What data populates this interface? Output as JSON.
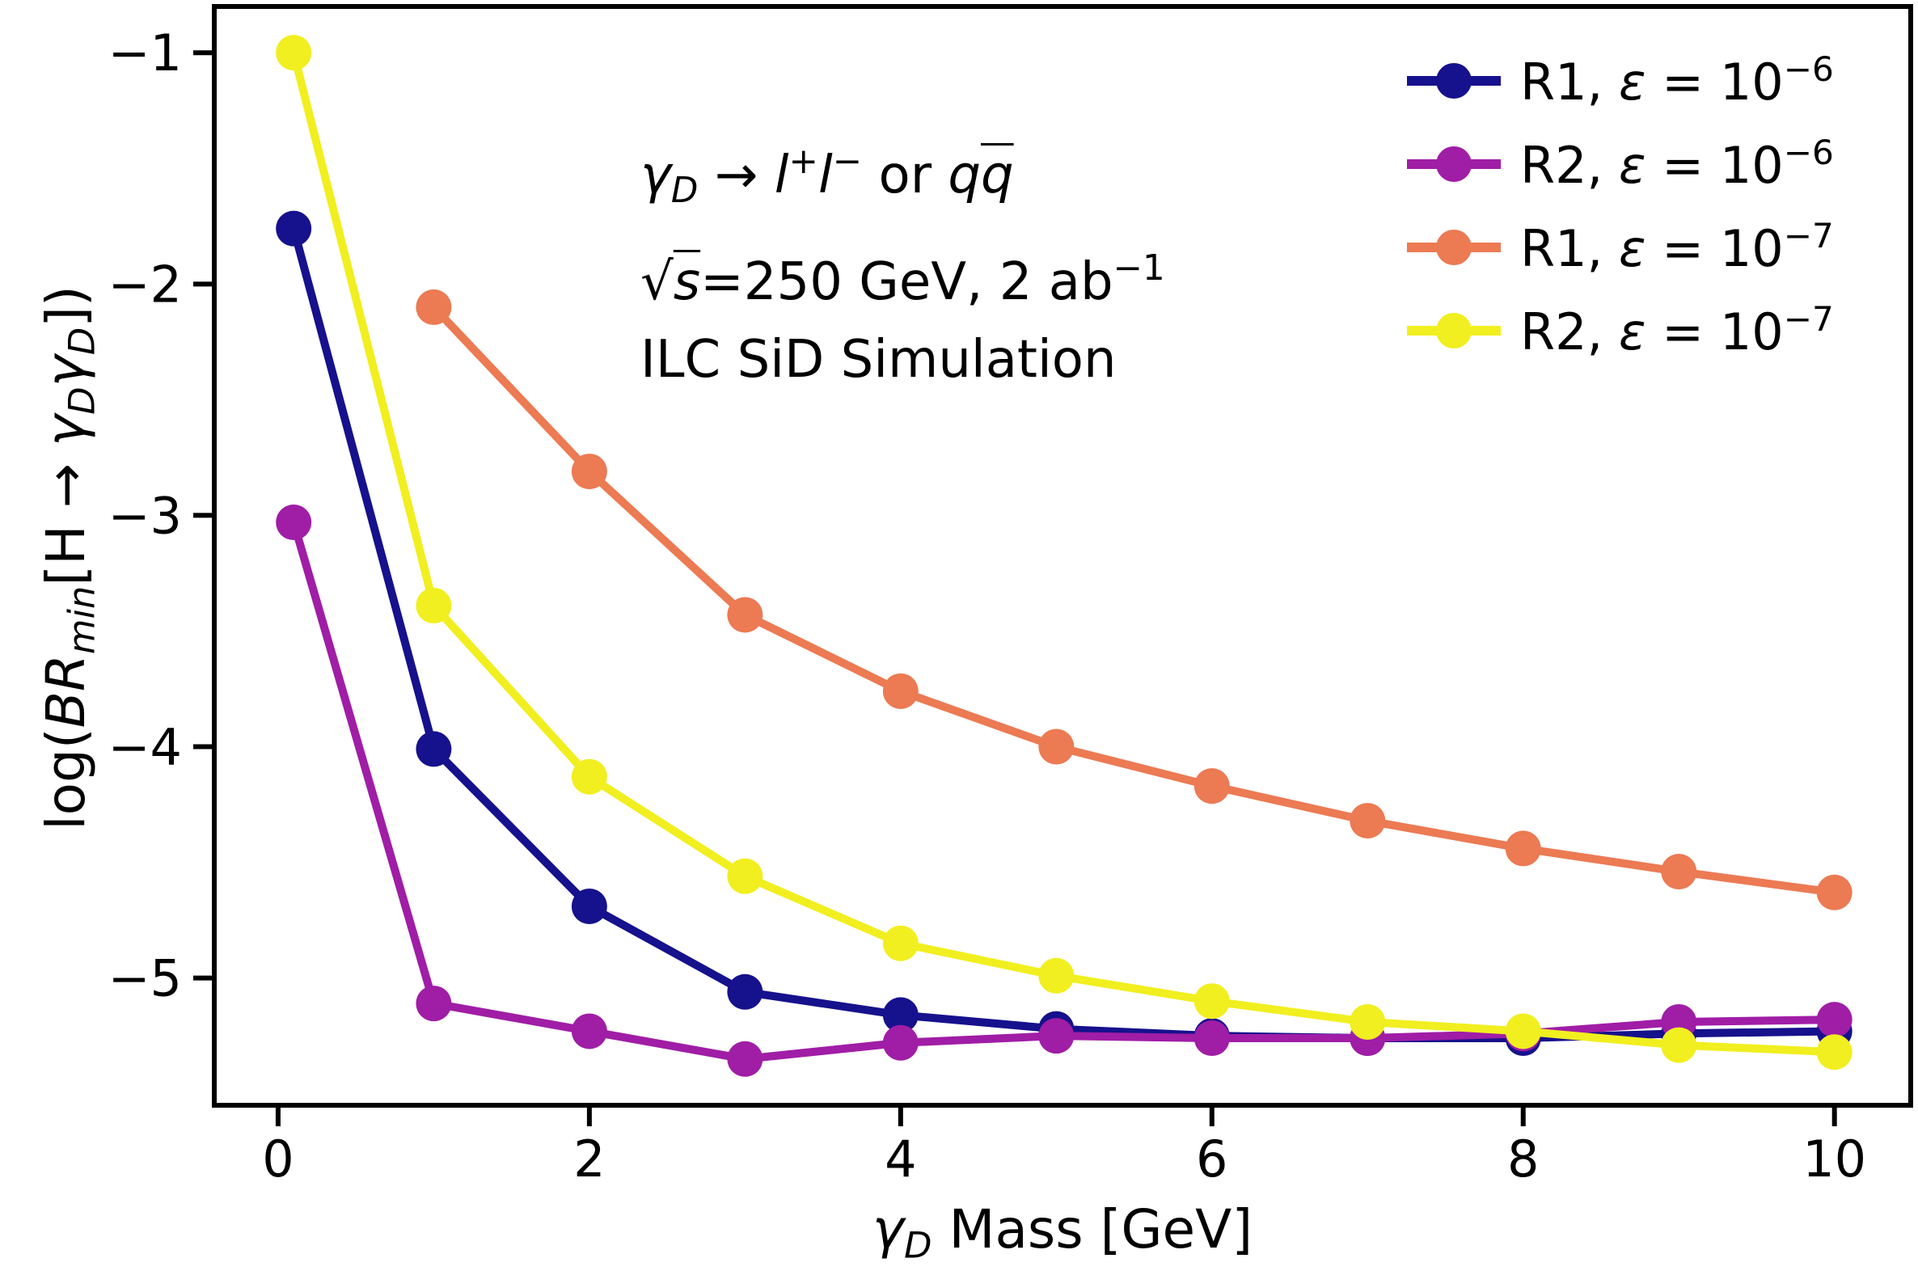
{
  "figure": {
    "xlabel": {
      "gamma": "γ",
      "sub_d": "D",
      "rest": " Mass [GeV]"
    },
    "ylabel": {
      "p1": "log(",
      "br": "BR",
      "sub_min": "min",
      "p2": "[H → ",
      "g1": "γ",
      "d1": "D",
      "g2": "γ",
      "d2": "D",
      "p3": "])"
    },
    "annotation": {
      "l1_gamma": "γ",
      "l1_sub_d": "D",
      "l1_arrow": " → ",
      "l1_l1": "l",
      "l1_plus": "+",
      "l1_l2": "l",
      "l1_minus": "−",
      "l1_or": " or ",
      "l1_q1": "q",
      "l1_q2": "q",
      "l2_sqrt": "√",
      "l2_s": "s",
      "l2_rest": "=250 GeV, 2 ab",
      "l2_exp": "−1",
      "l3": "ILC SiD Simulation"
    },
    "legend": {
      "0": {
        "prefix": "R1, ",
        "eps": "ε",
        "base": " = 10",
        "exp": "−6"
      },
      "1": {
        "prefix": "R2, ",
        "eps": "ε",
        "base": " = 10",
        "exp": "−6"
      },
      "2": {
        "prefix": "R1, ",
        "eps": "ε",
        "base": " = 10",
        "exp": "−7"
      },
      "3": {
        "prefix": "R2, ",
        "eps": "ε",
        "base": " = 10",
        "exp": "−7"
      }
    }
  },
  "chart_data": {
    "type": "line",
    "title": "",
    "xlabel": "γ_D Mass [GeV]",
    "ylabel": "log(BR_min[H → γ_D γ_D])",
    "annotation_lines": [
      "γ_D → l+l− or qq̄",
      "√s = 250 GeV, 2 ab−1",
      "ILC SiD Simulation"
    ],
    "xlim": [
      -0.41,
      10.49
    ],
    "ylim": [
      -5.55,
      -0.8
    ],
    "x_ticks": [
      0,
      2,
      4,
      6,
      8,
      10
    ],
    "y_ticks": [
      -1,
      -2,
      -3,
      -4,
      -5
    ],
    "grid": false,
    "legend_position": "upper right",
    "marker": "o",
    "series": [
      {
        "name": "R1, ε = 10⁻⁶",
        "color": "#16118c",
        "x": [
          0.1,
          1,
          2,
          3,
          4,
          5,
          6,
          7,
          8,
          9,
          10
        ],
        "y": [
          -1.76,
          -4.01,
          -4.69,
          -5.06,
          -5.16,
          -5.22,
          -5.25,
          -5.26,
          -5.26,
          -5.24,
          -5.23
        ]
      },
      {
        "name": "R2, ε = 10⁻⁶",
        "color": "#a01da6",
        "x": [
          0.1,
          1,
          2,
          3,
          4,
          5,
          6,
          7,
          8,
          9,
          10
        ],
        "y": [
          -3.03,
          -5.11,
          -5.23,
          -5.35,
          -5.28,
          -5.25,
          -5.26,
          -5.26,
          -5.24,
          -5.19,
          -5.18
        ]
      },
      {
        "name": "R1, ε = 10⁻⁷",
        "color": "#ec7a53",
        "x": [
          1,
          2,
          3,
          4,
          5,
          6,
          7,
          8,
          9,
          10
        ],
        "y": [
          -2.1,
          -2.81,
          -3.43,
          -3.76,
          -4.0,
          -4.17,
          -4.32,
          -4.44,
          -4.54,
          -4.63
        ]
      },
      {
        "name": "R2, ε = 10⁻⁷",
        "color": "#f1ef1f",
        "x": [
          0.1,
          1,
          2,
          3,
          4,
          5,
          6,
          7,
          8,
          9,
          10
        ],
        "y": [
          -1.0,
          -3.39,
          -4.13,
          -4.56,
          -4.85,
          -4.99,
          -5.1,
          -5.19,
          -5.23,
          -5.29,
          -5.32
        ]
      }
    ]
  }
}
